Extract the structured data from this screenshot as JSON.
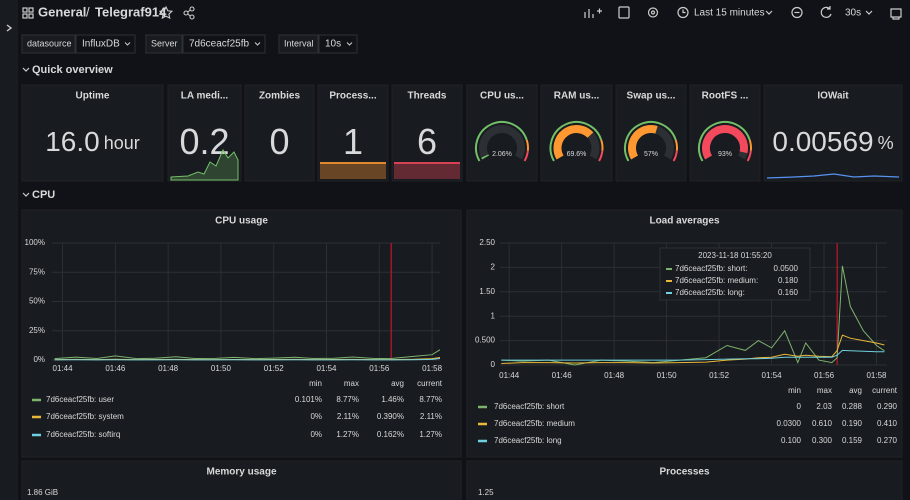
{
  "topbar": {
    "root": "General",
    "sep": "/",
    "dashboard": "Telegraf914",
    "time_range": "Last 15 minutes",
    "refresh": "30s"
  },
  "variables": [
    {
      "label": "datasource",
      "value": "InfluxDB"
    },
    {
      "label": "Server",
      "value": "7d6ceacf25fb"
    },
    {
      "label": "Interval",
      "value": "10s"
    }
  ],
  "rows": [
    "Quick overview",
    "CPU"
  ],
  "stats": [
    {
      "title": "Uptime",
      "value": "16.0",
      "unit": "hour",
      "color": "#d8d9da"
    },
    {
      "title": "LA medi...",
      "value": "0.2",
      "color": "#73bf69"
    },
    {
      "title": "Zombies",
      "value": "0",
      "color": "#73bf69"
    },
    {
      "title": "Process...",
      "value": "1",
      "color": "#ff9830"
    },
    {
      "title": "Threads",
      "value": "6",
      "color": "#f2495c"
    },
    {
      "title": "CPU us...",
      "gauge": 2.06,
      "gauge_label": "2.06%",
      "color": "#73bf69"
    },
    {
      "title": "RAM us...",
      "gauge": 69.6,
      "gauge_label": "69.6%",
      "color": "#ff9830"
    },
    {
      "title": "Swap us...",
      "gauge": 57,
      "gauge_label": "57%",
      "color": "#ff9830"
    },
    {
      "title": "RootFS ...",
      "gauge": 93,
      "gauge_label": "93%",
      "color": "#f2495c"
    },
    {
      "title": "IOWait",
      "value": "0.00569",
      "unit": "%",
      "color": "#d8d9da"
    }
  ],
  "charts": [
    {
      "type": "line",
      "title": "CPU usage",
      "xlim": [
        43.6,
        58.3
      ],
      "xticks": [
        {
          "value": 44,
          "label": "01:44"
        },
        {
          "value": 46,
          "label": "01:46"
        },
        {
          "value": 48,
          "label": "01:48"
        },
        {
          "value": 50,
          "label": "01:50"
        },
        {
          "value": 52,
          "label": "01:52"
        },
        {
          "value": 54,
          "label": "01:54"
        },
        {
          "value": 56,
          "label": "01:56"
        },
        {
          "value": 58,
          "label": "01:58"
        }
      ],
      "ylim": [
        0,
        100
      ],
      "yticks": [
        {
          "value": 0,
          "label": "0%"
        },
        {
          "value": 25,
          "label": "25%"
        },
        {
          "value": 50,
          "label": "50%"
        },
        {
          "value": 75,
          "label": "75%"
        },
        {
          "value": 100,
          "label": "100%"
        }
      ],
      "grid": true,
      "annotation": 56.45,
      "x": [
        43.7,
        44.5,
        45.3,
        46,
        46.8,
        47.5,
        48.3,
        49,
        49.8,
        50.5,
        51.3,
        52,
        52.8,
        53.5,
        54.3,
        55,
        55.8,
        56.5,
        57.3,
        58,
        58.3
      ],
      "legend_columns": [
        "min",
        "max",
        "avg",
        "current"
      ],
      "series": [
        {
          "name": "7d6ceacf25fb: user",
          "color": "#7eb26d",
          "values": [
            1.2,
            2.5,
            1.3,
            3.5,
            1.2,
            1.5,
            2.8,
            1.3,
            1.4,
            2.2,
            1.2,
            1.6,
            2.4,
            1.3,
            1.5,
            2.6,
            1.3,
            1.4,
            3.1,
            4.5,
            8.77
          ],
          "legend": [
            "0.101%",
            "8.77%",
            "1.46%",
            "8.77%"
          ]
        },
        {
          "name": "7d6ceacf25fb: system",
          "color": "#eab839",
          "values": [
            0.3,
            0.5,
            0.3,
            0.6,
            0.3,
            0.4,
            0.5,
            0.3,
            0.3,
            0.4,
            0.3,
            0.4,
            0.5,
            0.3,
            0.4,
            0.5,
            0.3,
            0.3,
            0.6,
            1.2,
            2.11
          ],
          "legend": [
            "0%",
            "2.11%",
            "0.390%",
            "2.11%"
          ]
        },
        {
          "name": "7d6ceacf25fb: softirq",
          "color": "#6ed0e0",
          "values": [
            0.1,
            0.2,
            0.1,
            0.2,
            0.1,
            0.1,
            0.2,
            0.1,
            0.1,
            0.2,
            0.1,
            0.1,
            0.2,
            0.1,
            0.1,
            0.2,
            0.1,
            0.1,
            0.2,
            0.5,
            1.27
          ],
          "legend": [
            "0%",
            "1.27%",
            "0.162%",
            "1.27%"
          ]
        }
      ]
    },
    {
      "type": "line",
      "title": "Load averages",
      "xlim": [
        43.65,
        58.4
      ],
      "xticks": [
        {
          "value": 44,
          "label": "01:44"
        },
        {
          "value": 46,
          "label": "01:46"
        },
        {
          "value": 48,
          "label": "01:48"
        },
        {
          "value": 50,
          "label": "01:50"
        },
        {
          "value": 52,
          "label": "01:52"
        },
        {
          "value": 54,
          "label": "01:54"
        },
        {
          "value": 56,
          "label": "01:56"
        },
        {
          "value": 58,
          "label": "01:58"
        }
      ],
      "ylim": [
        0,
        2.5
      ],
      "yticks": [
        0,
        {
          "value": 0.5,
          "label": "0.500"
        },
        1,
        {
          "value": 1.5,
          "label": "1.50"
        },
        2,
        {
          "value": 2.5,
          "label": "2.50"
        }
      ],
      "grid": true,
      "annotation": 56.5,
      "x": [
        43.7,
        44.5,
        45.5,
        46.5,
        47.5,
        48.5,
        49.5,
        50.5,
        51.5,
        52.3,
        53,
        53.5,
        54,
        54.5,
        55,
        55.3,
        55.8,
        56.3,
        56.5,
        56.7,
        57,
        57.5,
        58,
        58.3
      ],
      "legend_columns": [
        "min",
        "max",
        "avg",
        "current"
      ],
      "series": [
        {
          "name": "7d6ceacf25fb: short",
          "color": "#7eb26d",
          "values": [
            0.1,
            0.08,
            0.1,
            0,
            0.1,
            0.08,
            0.05,
            0.1,
            0.15,
            0.4,
            0.3,
            0.5,
            0.35,
            0.7,
            0.05,
            0.45,
            0.1,
            0.05,
            0.15,
            2.03,
            1.2,
            0.7,
            0.4,
            0.29
          ],
          "legend": [
            "0",
            "2.03",
            "0.288",
            "0.290"
          ]
        },
        {
          "name": "7d6ceacf25fb: medium",
          "color": "#eab839",
          "values": [
            0.03,
            0.05,
            0.05,
            0.04,
            0.05,
            0.05,
            0.04,
            0.05,
            0.06,
            0.1,
            0.12,
            0.15,
            0.16,
            0.22,
            0.18,
            0.2,
            0.18,
            0.17,
            0.3,
            0.61,
            0.55,
            0.5,
            0.45,
            0.41
          ],
          "legend": [
            "0.0300",
            "0.610",
            "0.190",
            "0.410"
          ]
        },
        {
          "name": "7d6ceacf25fb: long",
          "color": "#6ed0e0",
          "values": [
            0.1,
            0.1,
            0.1,
            0.1,
            0.1,
            0.1,
            0.1,
            0.1,
            0.11,
            0.12,
            0.13,
            0.13,
            0.14,
            0.16,
            0.16,
            0.16,
            0.16,
            0.16,
            0.2,
            0.3,
            0.29,
            0.28,
            0.27,
            0.27
          ],
          "legend": [
            "0.100",
            "0.300",
            "0.159",
            "0.270"
          ]
        }
      ],
      "tooltip": {
        "time": "2023-11-18 01:55:20",
        "rows": [
          {
            "name": "7d6ceacf25fb: short:",
            "value": "0.0500"
          },
          {
            "name": "7d6ceacf25fb: medium:",
            "value": "0.180"
          },
          {
            "name": "7d6ceacf25fb: long:",
            "value": "0.160"
          }
        ]
      }
    }
  ],
  "bottom_panels": [
    {
      "title": "Memory usage",
      "tick": "1.86 GiB"
    },
    {
      "title": "Processes",
      "tick": "1.25"
    }
  ]
}
